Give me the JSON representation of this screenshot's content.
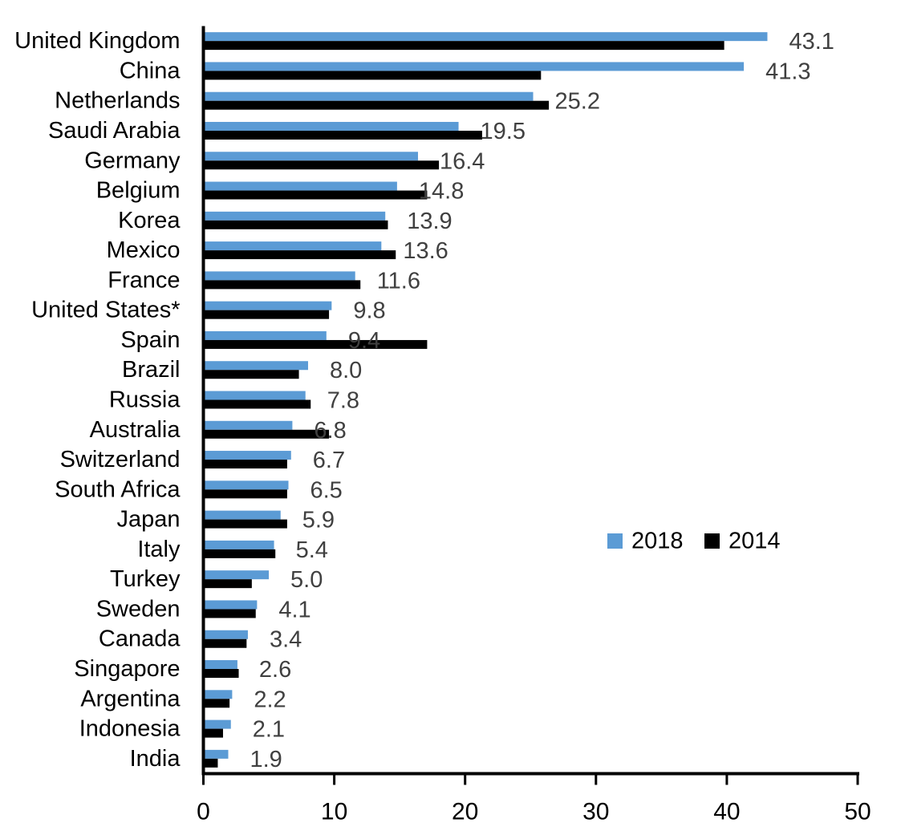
{
  "chart_data": {
    "type": "bar",
    "orientation": "horizontal",
    "title": "",
    "categories": [
      "United Kingdom",
      "China",
      "Netherlands",
      "Saudi Arabia",
      "Germany",
      "Belgium",
      "Korea",
      "Mexico",
      "France",
      "United States*",
      "Spain",
      "Brazil",
      "Russia",
      "Australia",
      "Switzerland",
      "South Africa",
      "Japan",
      "Italy",
      "Turkey",
      "Sweden",
      "Canada",
      "Singapore",
      "Argentina",
      "Indonesia",
      "India"
    ],
    "series": [
      {
        "name": "2018",
        "color": "#5B9BD5",
        "values": [
          43.1,
          41.3,
          25.2,
          19.5,
          16.4,
          14.8,
          13.9,
          13.6,
          11.6,
          9.8,
          9.4,
          8.0,
          7.8,
          6.8,
          6.7,
          6.5,
          5.9,
          5.4,
          5.0,
          4.1,
          3.4,
          2.6,
          2.2,
          2.1,
          1.9
        ],
        "data_labels": [
          "43.1",
          "41.3",
          "25.2",
          "19.5",
          "16.4",
          "14.8",
          "13.9",
          "13.6",
          "11.6",
          "9.8",
          "9.4",
          "8.0",
          "7.8",
          "6.8",
          "6.7",
          "6.5",
          "5.9",
          "5.4",
          "5.0",
          "4.1",
          "3.4",
          "2.6",
          "2.2",
          "2.1",
          "1.9"
        ]
      },
      {
        "name": "2014",
        "color": "#000000",
        "values": [
          39.8,
          25.8,
          26.4,
          21.3,
          18.0,
          17.1,
          14.1,
          14.7,
          12.0,
          9.6,
          17.1,
          7.3,
          8.2,
          9.6,
          6.4,
          6.4,
          6.4,
          5.5,
          3.7,
          4.0,
          3.3,
          2.7,
          2.0,
          1.5,
          1.1
        ],
        "data_labels": []
      }
    ],
    "xlabel": "",
    "ylabel": "",
    "xlim": [
      0,
      50
    ],
    "xticks": [
      "0",
      "10",
      "20",
      "30",
      "40",
      "50"
    ],
    "grid": false,
    "legend_position": "middle-right",
    "legend_entries": [
      "2018",
      "2014"
    ],
    "colors": {
      "background": "#FFFFFF",
      "axis": "#000000",
      "category_label": "#000000",
      "tick_label": "#000000",
      "value_label": "#404040",
      "legend_text": "#000000"
    }
  }
}
